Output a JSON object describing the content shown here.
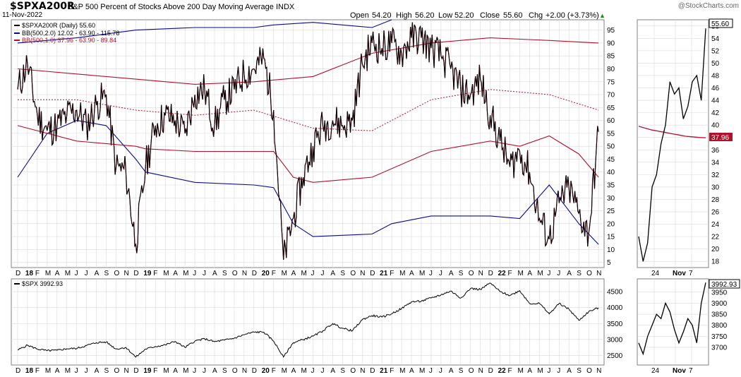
{
  "header": {
    "symbol": "$SPXA200R",
    "description": "S&P 500 Percent of Stocks Above 200 Day Moving Average INDX",
    "date": "11-Nov-2022",
    "watermark": "@StockCharts.com",
    "open_label": "Open",
    "open": "54.20",
    "high_label": "High",
    "high": "56.20",
    "low_label": "Low",
    "low": "52.20",
    "close_label": "Close",
    "close": "55.60",
    "chg_label": "Chg",
    "chg": "+2.00 (+3.73%)",
    "chg_arrow": "▲"
  },
  "colors": {
    "price": "#000000",
    "bb2": "#0a0a8c",
    "bb1": "#b4102c",
    "grid": "#d9d9d9",
    "border": "#808080"
  },
  "legend": {
    "main": "$SPXA200R (Daily) 55.60",
    "bb2": "BB(500,2.0) 12.02 - 63.90 - 115.78",
    "bb1": "BB(500,1.0) 37.96 - 63.90 - 89.84"
  },
  "lower_legend": "$SPX 3992.93",
  "badges": {
    "main_last": "55.60",
    "bb1_last": "37.96",
    "spx_last": "3992.93"
  },
  "month_labels": [
    "D",
    "18",
    "F",
    "M",
    "A",
    "M",
    "J",
    "J",
    "A",
    "S",
    "O",
    "N",
    "D",
    "19",
    "F",
    "M",
    "A",
    "M",
    "J",
    "J",
    "A",
    "S",
    "O",
    "N",
    "D",
    "20",
    "F",
    "M",
    "A",
    "M",
    "J",
    "J",
    "A",
    "S",
    "O",
    "N",
    "D",
    "21",
    "F",
    "M",
    "A",
    "M",
    "J",
    "J",
    "A",
    "S",
    "O",
    "N",
    "D",
    "22",
    "F",
    "M",
    "A",
    "M",
    "J",
    "J",
    "A",
    "S",
    "O",
    "N"
  ],
  "zoom_labels": [
    "24",
    "Nov",
    "7"
  ],
  "chart_data": [
    {
      "type": "line",
      "title": "$SPXA200R S&P 500 Percent of Stocks Above 200 Day Moving Average INDX",
      "ylim": [
        3,
        99
      ],
      "yticks": [
        5,
        10,
        15,
        20,
        25,
        30,
        35,
        40,
        45,
        50,
        55,
        60,
        65,
        70,
        75,
        80,
        85,
        90,
        95
      ],
      "xlim": [
        "2017-12",
        "2022-11"
      ],
      "series": [
        {
          "name": "$SPXA200R (Daily)",
          "x": [
            "2017-12",
            "2018-01",
            "2018-02",
            "2018-03",
            "2018-04",
            "2018-05",
            "2018-06",
            "2018-07",
            "2018-08",
            "2018-09",
            "2018-10",
            "2018-11",
            "2018-12",
            "2019-01",
            "2019-02",
            "2019-03",
            "2019-04",
            "2019-05",
            "2019-06",
            "2019-07",
            "2019-08",
            "2019-09",
            "2019-10",
            "2019-11",
            "2019-12",
            "2020-01",
            "2020-02",
            "2020-03",
            "2020-04",
            "2020-05",
            "2020-06",
            "2020-07",
            "2020-08",
            "2020-09",
            "2020-10",
            "2020-11",
            "2020-12",
            "2021-01",
            "2021-02",
            "2021-03",
            "2021-04",
            "2021-05",
            "2021-06",
            "2021-07",
            "2021-08",
            "2021-09",
            "2021-10",
            "2021-11",
            "2021-12",
            "2022-01",
            "2022-02",
            "2022-03",
            "2022-04",
            "2022-05",
            "2022-06",
            "2022-07",
            "2022-08",
            "2022-09",
            "2022-10",
            "2022-11"
          ],
          "values": [
            72,
            82,
            62,
            56,
            58,
            62,
            64,
            58,
            66,
            70,
            42,
            40,
            12,
            42,
            58,
            62,
            60,
            55,
            70,
            72,
            58,
            68,
            72,
            78,
            80,
            84,
            64,
            6,
            22,
            38,
            50,
            58,
            60,
            58,
            60,
            82,
            90,
            88,
            90,
            86,
            92,
            92,
            88,
            85,
            80,
            72,
            70,
            76,
            62,
            52,
            42,
            48,
            40,
            22,
            14,
            28,
            34,
            24,
            16,
            55.6
          ]
        },
        {
          "name": "BB(500,2.0) upper",
          "x": [
            "2017-12",
            "2018-06",
            "2018-12",
            "2019-06",
            "2019-12",
            "2020-02",
            "2020-06",
            "2020-12",
            "2021-02"
          ],
          "values": [
            90,
            92,
            95,
            96,
            96,
            97,
            98,
            96,
            99
          ]
        },
        {
          "name": "BB(500,2.0) lower",
          "x": [
            "2017-12",
            "2018-03",
            "2018-06",
            "2018-09",
            "2018-12",
            "2019-01",
            "2019-06",
            "2019-12",
            "2020-02",
            "2020-04",
            "2020-06",
            "2020-12",
            "2021-02",
            "2021-06",
            "2021-12",
            "2022-03",
            "2022-06",
            "2022-09",
            "2022-11"
          ],
          "values": [
            38,
            55,
            60,
            58,
            45,
            40,
            36,
            35,
            34,
            20,
            15,
            16,
            20,
            23,
            23,
            22,
            35,
            20,
            12
          ]
        },
        {
          "name": "BB(500,1.0) upper",
          "x": [
            "2017-12",
            "2018-06",
            "2018-12",
            "2019-06",
            "2019-12",
            "2020-06",
            "2020-12",
            "2021-06",
            "2021-12",
            "2022-06",
            "2022-11"
          ],
          "values": [
            80,
            78,
            76,
            74,
            75,
            77,
            86,
            90,
            92,
            91,
            90
          ]
        },
        {
          "name": "BB(500,1.0) middle",
          "x": [
            "2017-12",
            "2018-06",
            "2018-12",
            "2019-06",
            "2019-12",
            "2020-06",
            "2020-12",
            "2021-06",
            "2021-12",
            "2022-06",
            "2022-11"
          ],
          "values": [
            68,
            68,
            64,
            62,
            64,
            57,
            56,
            68,
            72,
            70,
            64
          ]
        },
        {
          "name": "BB(500,1.0) lower",
          "x": [
            "2017-12",
            "2018-06",
            "2018-12",
            "2019-01",
            "2019-06",
            "2019-12",
            "2020-02",
            "2020-04",
            "2020-06",
            "2020-12",
            "2021-06",
            "2021-12",
            "2022-03",
            "2022-06",
            "2022-09",
            "2022-11"
          ],
          "values": [
            58,
            52,
            50,
            49,
            48,
            48,
            48,
            38,
            36,
            38,
            48,
            52,
            50,
            54,
            47,
            38
          ]
        }
      ]
    },
    {
      "type": "line",
      "title": "$SPX",
      "ylim": [
        2200,
        4900
      ],
      "yticks": [
        2500,
        3000,
        3500,
        4000,
        4500
      ],
      "series": [
        {
          "name": "$SPX",
          "x": [
            "2017-12",
            "2018-01",
            "2018-02",
            "2018-03",
            "2018-04",
            "2018-05",
            "2018-06",
            "2018-07",
            "2018-08",
            "2018-09",
            "2018-10",
            "2018-11",
            "2018-12",
            "2019-01",
            "2019-02",
            "2019-03",
            "2019-04",
            "2019-05",
            "2019-06",
            "2019-07",
            "2019-08",
            "2019-09",
            "2019-10",
            "2019-11",
            "2019-12",
            "2020-01",
            "2020-02",
            "2020-03",
            "2020-04",
            "2020-05",
            "2020-06",
            "2020-07",
            "2020-08",
            "2020-09",
            "2020-10",
            "2020-11",
            "2020-12",
            "2021-01",
            "2021-02",
            "2021-03",
            "2021-04",
            "2021-05",
            "2021-06",
            "2021-07",
            "2021-08",
            "2021-09",
            "2021-10",
            "2021-11",
            "2021-12",
            "2022-01",
            "2022-02",
            "2022-03",
            "2022-04",
            "2022-05",
            "2022-06",
            "2022-07",
            "2022-08",
            "2022-09",
            "2022-10",
            "2022-11"
          ],
          "values": [
            2670,
            2820,
            2700,
            2650,
            2660,
            2710,
            2720,
            2810,
            2900,
            2920,
            2700,
            2750,
            2450,
            2700,
            2780,
            2830,
            2940,
            2750,
            2950,
            3020,
            2930,
            2980,
            3040,
            3150,
            3230,
            3230,
            2950,
            2450,
            2900,
            3000,
            3100,
            3270,
            3500,
            3350,
            3270,
            3620,
            3750,
            3700,
            3810,
            3970,
            4180,
            4200,
            4300,
            4400,
            4520,
            4300,
            4600,
            4570,
            4770,
            4500,
            4380,
            4530,
            4130,
            4130,
            3800,
            4130,
            3950,
            3600,
            3870,
            3993
          ]
        }
      ]
    },
    {
      "type": "line",
      "title": "$SPXA200R zoom",
      "ylim": [
        17,
        57
      ],
      "yticks": [
        18,
        20,
        22,
        24,
        26,
        28,
        30,
        32,
        34,
        36,
        38,
        40,
        42,
        44,
        46,
        48,
        50,
        52,
        54,
        56
      ],
      "series": [
        {
          "name": "$SPXA200R (Daily)",
          "values": [
            22,
            18,
            21,
            30,
            32,
            37,
            40,
            47,
            45,
            46,
            41,
            43,
            47,
            48,
            44,
            55.6
          ]
        },
        {
          "name": "BB(500,1.0) lower",
          "values": [
            39.8,
            39.5,
            39.2,
            39.0,
            38.8,
            38.6,
            38.4,
            38.2,
            38.1,
            38.0,
            37.96
          ]
        }
      ]
    },
    {
      "type": "line",
      "title": "$SPX zoom",
      "ylim": [
        3620,
        4010
      ],
      "yticks": [
        3700,
        3750,
        3800,
        3850,
        3900,
        3950
      ],
      "series": [
        {
          "name": "$SPX",
          "values": [
            3720,
            3670,
            3750,
            3800,
            3850,
            3830,
            3900,
            3860,
            3780,
            3720,
            3770,
            3830,
            3800,
            3720,
            3900,
            3993
          ]
        }
      ]
    }
  ]
}
